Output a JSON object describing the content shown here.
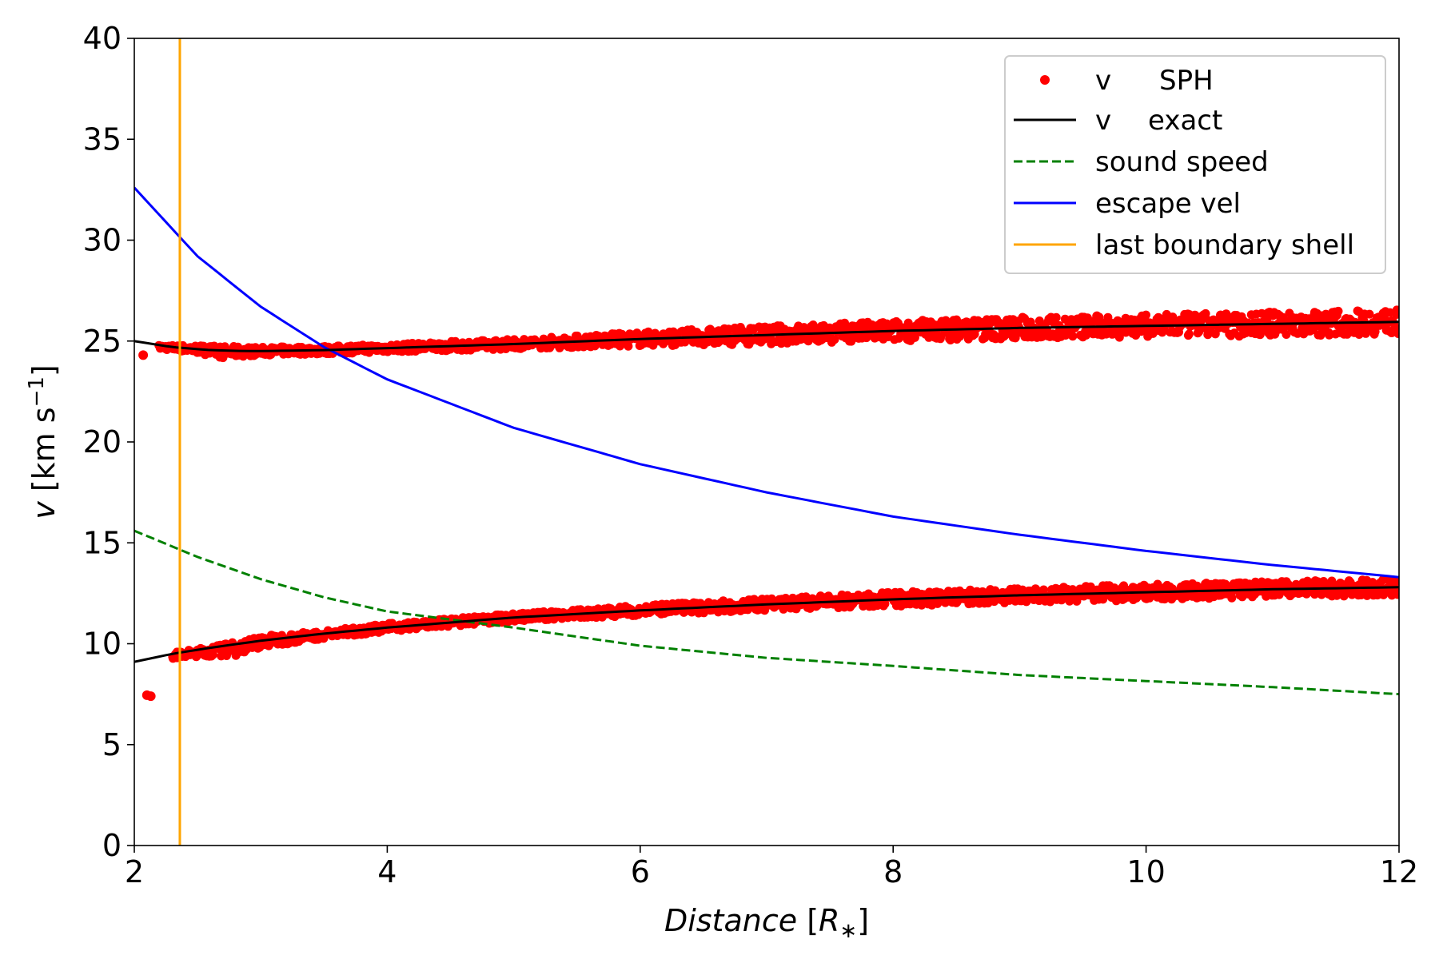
{
  "chart_data": {
    "type": "line",
    "xlabel": "Distance [R∗]",
    "xlabel_main": "Distance",
    "xlabel_unit_open": " [",
    "xlabel_unit_symbol": "R",
    "xlabel_unit_sub": "∗",
    "xlabel_unit_close": "]",
    "ylabel": "v [km s⁻¹]",
    "ylabel_main": "v",
    "ylabel_unit": " [km s",
    "ylabel_exp": "−1",
    "ylabel_close": "]",
    "xlim": [
      2,
      12
    ],
    "ylim": [
      0,
      40
    ],
    "xticks": [
      2,
      4,
      6,
      8,
      10,
      12
    ],
    "yticks": [
      0,
      5,
      10,
      15,
      20,
      25,
      30,
      35,
      40
    ],
    "grid": false,
    "legend_position": "top-right",
    "legend": [
      {
        "key": "sph",
        "label_v": "v",
        "label": "SPH",
        "style": "dots",
        "color": "#ff0000"
      },
      {
        "key": "exact",
        "label_v": "v",
        "label": "exact",
        "style": "solid",
        "color": "#000000"
      },
      {
        "key": "sound",
        "label": "sound speed",
        "style": "dashed",
        "color": "#008000"
      },
      {
        "key": "escape",
        "label": "escape vel",
        "style": "solid",
        "color": "#0000ff"
      },
      {
        "key": "boundary",
        "label": "last boundary shell",
        "style": "solid",
        "color": "#ffa500"
      }
    ],
    "series": [
      {
        "name": "v exact (upper)",
        "color": "#000000",
        "x": [
          2.0,
          2.3,
          2.6,
          2.9,
          3.2,
          3.5,
          4.0,
          5.0,
          6.0,
          7.0,
          8.0,
          9.0,
          10.0,
          11.0,
          12.0
        ],
        "y": [
          25.0,
          24.7,
          24.55,
          24.5,
          24.52,
          24.55,
          24.65,
          24.85,
          25.1,
          25.3,
          25.5,
          25.65,
          25.75,
          25.85,
          25.95
        ]
      },
      {
        "name": "v exact (lower)",
        "color": "#000000",
        "x": [
          2.0,
          2.3,
          2.6,
          3.0,
          3.5,
          4.0,
          4.5,
          5.0,
          6.0,
          7.0,
          8.0,
          9.0,
          10.0,
          11.0,
          12.0
        ],
        "y": [
          9.1,
          9.5,
          9.8,
          10.15,
          10.5,
          10.8,
          11.05,
          11.3,
          11.65,
          11.95,
          12.2,
          12.4,
          12.55,
          12.7,
          12.8
        ]
      },
      {
        "name": "sound speed",
        "color": "#008000",
        "dashed": true,
        "x": [
          2.0,
          2.5,
          3.0,
          3.5,
          4.0,
          5.0,
          6.0,
          7.0,
          8.0,
          9.0,
          10.0,
          11.0,
          12.0
        ],
        "y": [
          15.6,
          14.3,
          13.2,
          12.3,
          11.6,
          10.8,
          9.9,
          9.3,
          8.9,
          8.45,
          8.15,
          7.85,
          7.5
        ]
      },
      {
        "name": "escape vel",
        "color": "#0000ff",
        "x": [
          2.0,
          2.5,
          3.0,
          3.5,
          4.0,
          5.0,
          6.0,
          7.0,
          8.0,
          9.0,
          10.0,
          11.0,
          12.0
        ],
        "y": [
          32.6,
          29.2,
          26.7,
          24.7,
          23.1,
          20.7,
          18.9,
          17.5,
          16.3,
          15.4,
          14.6,
          13.9,
          13.3
        ]
      }
    ],
    "boundary_x": 2.36,
    "sph_bands": [
      {
        "x": [
          2.2,
          2.5,
          2.7,
          3.0,
          3.5,
          4.0,
          5.0,
          6.0,
          7.0,
          8.0,
          9.0,
          10.0,
          11.0,
          12.0
        ],
        "y": [
          24.7,
          24.6,
          24.45,
          24.5,
          24.55,
          24.65,
          24.85,
          25.1,
          25.3,
          25.5,
          25.65,
          25.75,
          25.85,
          25.95
        ],
        "spread": [
          0.1,
          0.2,
          0.3,
          0.2,
          0.2,
          0.2,
          0.25,
          0.35,
          0.45,
          0.5,
          0.55,
          0.55,
          0.6,
          0.6
        ]
      },
      {
        "x": [
          2.3,
          2.5,
          2.8,
          3.0,
          3.5,
          4.0,
          5.0,
          6.0,
          7.0,
          8.0,
          9.0,
          10.0,
          11.0,
          12.0
        ],
        "y": [
          9.4,
          9.55,
          9.75,
          10.1,
          10.45,
          10.8,
          11.3,
          11.65,
          11.95,
          12.2,
          12.4,
          12.55,
          12.7,
          12.8
        ],
        "spread": [
          0.15,
          0.2,
          0.35,
          0.3,
          0.2,
          0.2,
          0.2,
          0.25,
          0.3,
          0.35,
          0.35,
          0.4,
          0.4,
          0.4
        ]
      }
    ],
    "sph_outliers": [
      {
        "x": 2.07,
        "y": 24.3
      },
      {
        "x": 2.13,
        "y": 7.4
      },
      {
        "x": 2.1,
        "y": 7.45
      }
    ]
  }
}
